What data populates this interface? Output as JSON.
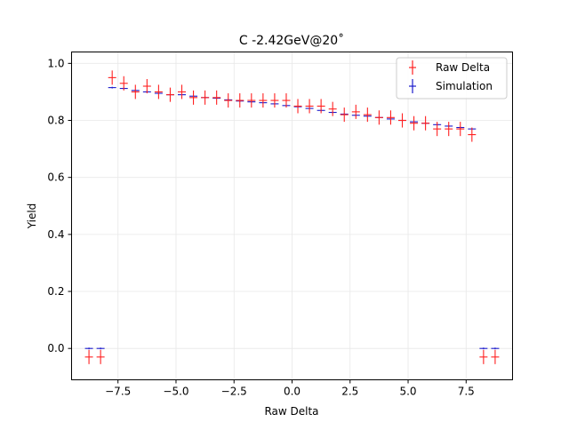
{
  "chart_data": {
    "type": "scatter",
    "title": "C -2.42GeV@20˚",
    "xlabel": "Raw Delta",
    "ylabel": "Yield",
    "xlim": [
      -9.5,
      9.5
    ],
    "ylim": [
      -0.11,
      1.04
    ],
    "xticks": [
      -7.5,
      -5.0,
      -2.5,
      0.0,
      2.5,
      5.0,
      7.5
    ],
    "xtick_labels": [
      "−7.5",
      "−5.0",
      "−2.5",
      "0.0",
      "2.5",
      "5.0",
      "7.5"
    ],
    "yticks": [
      0.0,
      0.2,
      0.4,
      0.6,
      0.8,
      1.0
    ],
    "ytick_labels": [
      "0.0",
      "0.2",
      "0.4",
      "0.6",
      "0.8",
      "1.0"
    ],
    "grid": true,
    "legend_position": "top-right",
    "colors": {
      "raw": "#ff2020",
      "sim": "#1a1acc"
    },
    "series": [
      {
        "name": "Raw Delta",
        "x": [
          -8.75,
          -8.25,
          -7.75,
          -7.25,
          -6.75,
          -6.25,
          -5.75,
          -5.25,
          -4.75,
          -4.25,
          -3.75,
          -3.25,
          -2.75,
          -2.25,
          -1.75,
          -1.25,
          -0.75,
          -0.25,
          0.25,
          0.75,
          1.25,
          1.75,
          2.25,
          2.75,
          3.25,
          3.75,
          4.25,
          4.75,
          5.25,
          5.75,
          6.25,
          6.75,
          7.25,
          7.75,
          8.25,
          8.75
        ],
        "y": [
          -0.03,
          -0.03,
          0.95,
          0.93,
          0.9,
          0.92,
          0.9,
          0.89,
          0.9,
          0.88,
          0.88,
          0.88,
          0.87,
          0.87,
          0.87,
          0.87,
          0.87,
          0.87,
          0.85,
          0.85,
          0.85,
          0.84,
          0.82,
          0.83,
          0.82,
          0.81,
          0.81,
          0.8,
          0.79,
          0.79,
          0.77,
          0.77,
          0.77,
          0.75,
          -0.03,
          -0.03
        ],
        "yerr": [
          0.025,
          0.025,
          0.025,
          0.025,
          0.025,
          0.025,
          0.025,
          0.025,
          0.025,
          0.025,
          0.025,
          0.025,
          0.025,
          0.025,
          0.025,
          0.025,
          0.025,
          0.025,
          0.025,
          0.025,
          0.025,
          0.025,
          0.025,
          0.025,
          0.025,
          0.025,
          0.025,
          0.025,
          0.025,
          0.025,
          0.025,
          0.025,
          0.025,
          0.025,
          0.025,
          0.025
        ]
      },
      {
        "name": "Simulation",
        "x": [
          -8.75,
          -8.25,
          -7.75,
          -7.25,
          -6.75,
          -6.25,
          -5.75,
          -5.25,
          -4.75,
          -4.25,
          -3.75,
          -3.25,
          -2.75,
          -2.25,
          -1.75,
          -1.25,
          -0.75,
          -0.25,
          0.25,
          0.75,
          1.25,
          1.75,
          2.25,
          2.75,
          3.25,
          3.75,
          4.25,
          4.75,
          5.25,
          5.75,
          6.25,
          6.75,
          7.25,
          7.75,
          8.25,
          8.75
        ],
        "y": [
          0.0,
          0.0,
          0.915,
          0.912,
          0.905,
          0.9,
          0.895,
          0.89,
          0.89,
          0.885,
          0.88,
          0.878,
          0.872,
          0.868,
          0.865,
          0.862,
          0.858,
          0.852,
          0.848,
          0.842,
          0.835,
          0.828,
          0.822,
          0.818,
          0.815,
          0.81,
          0.805,
          0.8,
          0.795,
          0.79,
          0.785,
          0.78,
          0.775,
          0.77,
          0.0,
          0.0
        ],
        "yerr": [
          0.003,
          0.003,
          0.003,
          0.003,
          0.003,
          0.003,
          0.003,
          0.003,
          0.003,
          0.003,
          0.003,
          0.003,
          0.003,
          0.003,
          0.003,
          0.003,
          0.003,
          0.003,
          0.003,
          0.003,
          0.003,
          0.003,
          0.003,
          0.003,
          0.003,
          0.003,
          0.003,
          0.003,
          0.003,
          0.003,
          0.003,
          0.003,
          0.003,
          0.003,
          0.003,
          0.003
        ]
      }
    ]
  }
}
